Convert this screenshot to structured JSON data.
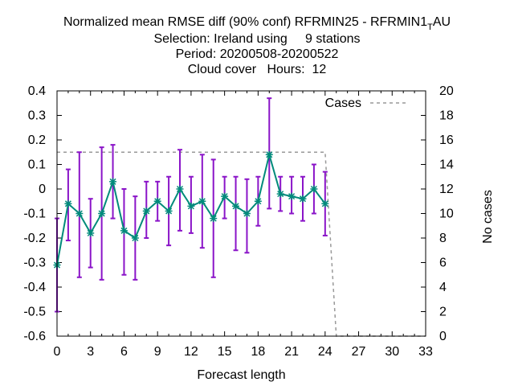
{
  "chart_data": {
    "type": "line",
    "title_lines": [
      {
        "text": "Normalized mean RMSE diff (90% conf) RFRMIN25 - RFRMIN1",
        "sub": "T",
        "tail": "AU"
      },
      {
        "text": "Selection: Ireland using     9 stations"
      },
      {
        "text": "Period: 20200508-20200522"
      },
      {
        "text": "Cloud cover   Hours:  12"
      }
    ],
    "xlabel": "Forecast length",
    "ylabel": "",
    "y2label": "No cases",
    "xlim": [
      0,
      33
    ],
    "ylim": [
      -0.6,
      0.4
    ],
    "y2lim": [
      0,
      20
    ],
    "xticks": [
      "0",
      "3",
      "6",
      "9",
      "12",
      "15",
      "18",
      "21",
      "24",
      "27",
      "30",
      "33"
    ],
    "yticks": [
      "-0.6",
      "-0.5",
      "-0.4",
      "-0.3",
      "-0.2",
      "-0.1",
      "0",
      "0.1",
      "0.2",
      "0.3",
      "0.4"
    ],
    "y2ticks": [
      "0",
      "2",
      "4",
      "6",
      "8",
      "10",
      "12",
      "14",
      "16",
      "18",
      "20"
    ],
    "legend_position": "top-right",
    "series": [
      {
        "name": "",
        "color": "#008b7a",
        "marker_color": "#008b7a",
        "errorbar_color": "#8a14c8",
        "x": [
          0,
          1,
          2,
          3,
          4,
          5,
          6,
          7,
          8,
          9,
          10,
          11,
          12,
          13,
          14,
          15,
          16,
          17,
          18,
          19,
          20,
          21,
          22,
          23,
          24
        ],
        "y": [
          -0.31,
          -0.06,
          -0.1,
          -0.18,
          -0.1,
          0.03,
          -0.17,
          -0.2,
          -0.09,
          -0.05,
          -0.09,
          0.0,
          -0.07,
          -0.05,
          -0.12,
          -0.03,
          -0.07,
          -0.1,
          -0.05,
          0.14,
          -0.02,
          -0.03,
          -0.04,
          0.0,
          -0.06
        ],
        "y_low": [
          -0.5,
          -0.21,
          -0.36,
          -0.32,
          -0.37,
          -0.12,
          -0.35,
          -0.37,
          -0.2,
          -0.13,
          -0.23,
          -0.17,
          -0.18,
          -0.24,
          -0.36,
          -0.12,
          -0.25,
          -0.26,
          -0.15,
          -0.08,
          -0.09,
          -0.1,
          -0.13,
          -0.1,
          -0.19
        ],
        "y_high": [
          -0.12,
          0.08,
          0.15,
          -0.04,
          0.17,
          0.18,
          0.0,
          -0.03,
          0.03,
          0.03,
          0.05,
          0.16,
          0.05,
          0.14,
          0.12,
          0.05,
          0.05,
          0.04,
          0.05,
          0.37,
          0.05,
          0.05,
          0.05,
          0.1,
          0.07
        ]
      },
      {
        "name": "Cases",
        "axis": "y2",
        "color": "#999999",
        "dash": true,
        "x": [
          0,
          24,
          25,
          33
        ],
        "y": [
          15,
          15,
          0,
          0
        ]
      }
    ],
    "grid": false
  }
}
